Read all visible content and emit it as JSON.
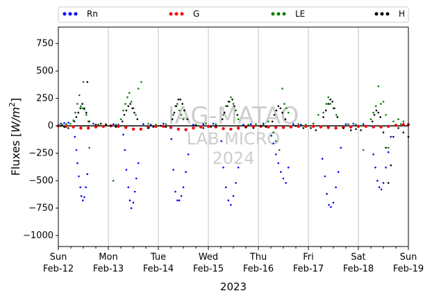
{
  "chart_data": {
    "type": "scatter",
    "ylabel": "Fluxes [W/m²]",
    "ylabel_parts": {
      "base": "Fluxes [",
      "unit": "W/m",
      "exp": "2",
      "end": "]"
    },
    "xlabel": "2023",
    "ylim": [
      -1100,
      900
    ],
    "yticks": [
      750,
      500,
      250,
      0,
      -250,
      -500,
      -750,
      -1000
    ],
    "xlim_days": [
      0,
      7
    ],
    "xticks": [
      {
        "day": 0,
        "label1": "Sun",
        "label2": "Feb-12"
      },
      {
        "day": 1,
        "label1": "Mon",
        "label2": "Feb-13"
      },
      {
        "day": 2,
        "label1": "Tue",
        "label2": "Feb-14"
      },
      {
        "day": 3,
        "label1": "Wed",
        "label2": "Feb-15"
      },
      {
        "day": 4,
        "label1": "Thu",
        "label2": "Feb-16"
      },
      {
        "day": 5,
        "label1": "Fri",
        "label2": "Feb-17"
      },
      {
        "day": 6,
        "label1": "Sat",
        "label2": "Feb-18"
      },
      {
        "day": 7,
        "label1": "Sun",
        "label2": "Feb-19"
      }
    ],
    "legend_placement": "top",
    "grid": "vertical",
    "watermark": {
      "line1": "IAG-MATAO",
      "line2": "LAB MICRO",
      "line3": "2024"
    },
    "series": [
      {
        "name": "Rn",
        "color": "#0000ff",
        "points": [
          [
            0.33,
            -100
          ],
          [
            0.36,
            -220
          ],
          [
            0.38,
            -340
          ],
          [
            0.41,
            -460
          ],
          [
            0.44,
            -560
          ],
          [
            0.46,
            -640
          ],
          [
            0.49,
            -680
          ],
          [
            0.52,
            -650
          ],
          [
            0.55,
            -560
          ],
          [
            0.58,
            -440
          ],
          [
            1.3,
            -80
          ],
          [
            1.33,
            -220
          ],
          [
            1.36,
            -400
          ],
          [
            1.4,
            -560
          ],
          [
            1.43,
            -680
          ],
          [
            1.46,
            -750
          ],
          [
            1.5,
            -700
          ],
          [
            1.53,
            -600
          ],
          [
            1.56,
            -480
          ],
          [
            1.6,
            -340
          ],
          [
            2.26,
            -120
          ],
          [
            2.3,
            -400
          ],
          [
            2.34,
            -600
          ],
          [
            2.38,
            -680
          ],
          [
            2.42,
            -680
          ],
          [
            2.46,
            -640
          ],
          [
            2.5,
            -560
          ],
          [
            2.55,
            -420
          ],
          [
            2.6,
            -260
          ],
          [
            3.26,
            -140
          ],
          [
            3.3,
            -380
          ],
          [
            3.35,
            -560
          ],
          [
            3.4,
            -680
          ],
          [
            3.45,
            -720
          ],
          [
            3.5,
            -640
          ],
          [
            3.55,
            -520
          ],
          [
            3.6,
            -380
          ],
          [
            4.26,
            -90
          ],
          [
            4.3,
            -160
          ],
          [
            4.35,
            -260
          ],
          [
            4.4,
            -340
          ],
          [
            4.45,
            -420
          ],
          [
            4.5,
            -480
          ],
          [
            4.55,
            -520
          ],
          [
            4.6,
            -380
          ],
          [
            5.28,
            -300
          ],
          [
            5.33,
            -460
          ],
          [
            5.37,
            -620
          ],
          [
            5.41,
            -720
          ],
          [
            5.45,
            -740
          ],
          [
            5.5,
            -700
          ],
          [
            5.55,
            -560
          ],
          [
            5.6,
            -420
          ],
          [
            5.65,
            -200
          ],
          [
            6.3,
            -260
          ],
          [
            6.34,
            -380
          ],
          [
            6.38,
            -500
          ],
          [
            6.42,
            -560
          ],
          [
            6.46,
            -580
          ],
          [
            6.5,
            -520
          ],
          [
            6.55,
            -380
          ],
          [
            6.6,
            -240
          ],
          [
            6.65,
            -100
          ],
          [
            0.05,
            20
          ],
          [
            0.12,
            25
          ],
          [
            0.2,
            30
          ],
          [
            0.7,
            20
          ],
          [
            0.8,
            10
          ],
          [
            1.1,
            15
          ],
          [
            1.2,
            10
          ],
          [
            1.7,
            15
          ],
          [
            1.85,
            10
          ],
          [
            2.1,
            20
          ],
          [
            2.7,
            10
          ],
          [
            2.9,
            15
          ],
          [
            3.1,
            20
          ],
          [
            3.7,
            10
          ],
          [
            3.85,
            15
          ],
          [
            4.1,
            20
          ],
          [
            4.7,
            15
          ],
          [
            4.85,
            10
          ],
          [
            5.1,
            20
          ],
          [
            5.75,
            15
          ],
          [
            5.9,
            20
          ],
          [
            6.1,
            15
          ],
          [
            6.75,
            10
          ],
          [
            6.9,
            20
          ]
        ]
      },
      {
        "name": "G",
        "color": "#ff0000",
        "points": [
          [
            0.0,
            0
          ],
          [
            0.15,
            -5
          ],
          [
            0.3,
            -10
          ],
          [
            0.45,
            -20
          ],
          [
            0.6,
            -20
          ],
          [
            0.75,
            -10
          ],
          [
            0.9,
            -5
          ],
          [
            1.05,
            0
          ],
          [
            1.2,
            -5
          ],
          [
            1.35,
            -15
          ],
          [
            1.5,
            -30
          ],
          [
            1.65,
            -30
          ],
          [
            1.8,
            -15
          ],
          [
            1.95,
            -5
          ],
          [
            2.1,
            -5
          ],
          [
            2.25,
            -15
          ],
          [
            2.4,
            -30
          ],
          [
            2.55,
            -35
          ],
          [
            2.7,
            -20
          ],
          [
            2.85,
            -10
          ],
          [
            3.0,
            -5
          ],
          [
            3.15,
            -10
          ],
          [
            3.3,
            -25
          ],
          [
            3.45,
            -30
          ],
          [
            3.6,
            -20
          ],
          [
            3.75,
            -10
          ],
          [
            3.9,
            -5
          ],
          [
            4.05,
            -5
          ],
          [
            4.2,
            -10
          ],
          [
            4.35,
            -15
          ],
          [
            4.5,
            -15
          ],
          [
            4.65,
            -10
          ],
          [
            4.8,
            -5
          ],
          [
            4.95,
            -5
          ],
          [
            5.1,
            -5
          ],
          [
            5.25,
            -10
          ],
          [
            5.4,
            -15
          ],
          [
            5.55,
            -20
          ],
          [
            5.7,
            -15
          ],
          [
            5.85,
            -10
          ],
          [
            6.0,
            -5
          ],
          [
            6.15,
            -5
          ],
          [
            6.3,
            -10
          ],
          [
            6.45,
            -10
          ],
          [
            6.6,
            -5
          ],
          [
            6.75,
            5
          ],
          [
            6.9,
            10
          ],
          [
            7.0,
            10
          ]
        ]
      },
      {
        "name": "LE",
        "color": "#008000",
        "points": [
          [
            0.3,
            50
          ],
          [
            0.34,
            120
          ],
          [
            0.38,
            200
          ],
          [
            0.42,
            280
          ],
          [
            0.45,
            180
          ],
          [
            0.48,
            160
          ],
          [
            0.52,
            150
          ],
          [
            0.56,
            100
          ],
          [
            0.6,
            40
          ],
          [
            0.62,
            -200
          ],
          [
            0.5,
            400
          ],
          [
            1.25,
            60
          ],
          [
            1.3,
            140
          ],
          [
            1.34,
            200
          ],
          [
            1.38,
            260
          ],
          [
            1.42,
            300
          ],
          [
            1.46,
            220
          ],
          [
            1.5,
            160
          ],
          [
            1.55,
            100
          ],
          [
            1.6,
            340
          ],
          [
            1.66,
            400
          ],
          [
            1.1,
            -500
          ],
          [
            2.3,
            100
          ],
          [
            2.34,
            180
          ],
          [
            2.38,
            200
          ],
          [
            2.42,
            140
          ],
          [
            2.46,
            100
          ],
          [
            2.5,
            60
          ],
          [
            3.3,
            100
          ],
          [
            3.35,
            180
          ],
          [
            3.4,
            220
          ],
          [
            3.45,
            260
          ],
          [
            3.5,
            200
          ],
          [
            3.55,
            140
          ],
          [
            3.6,
            60
          ],
          [
            4.2,
            40
          ],
          [
            4.3,
            -60
          ],
          [
            4.35,
            -140
          ],
          [
            4.42,
            -220
          ],
          [
            4.48,
            340
          ],
          [
            4.52,
            200
          ],
          [
            4.56,
            160
          ],
          [
            4.6,
            120
          ],
          [
            5.2,
            100
          ],
          [
            5.3,
            120
          ],
          [
            5.36,
            200
          ],
          [
            5.4,
            260
          ],
          [
            5.44,
            200
          ],
          [
            5.5,
            160
          ],
          [
            5.56,
            100
          ],
          [
            6.1,
            -220
          ],
          [
            6.25,
            60
          ],
          [
            6.3,
            120
          ],
          [
            6.35,
            180
          ],
          [
            6.4,
            360
          ],
          [
            6.45,
            200
          ],
          [
            6.5,
            220
          ],
          [
            6.55,
            100
          ],
          [
            6.6,
            -200
          ],
          [
            6.7,
            40
          ],
          [
            6.8,
            60
          ],
          [
            6.9,
            40
          ],
          [
            0.08,
            10
          ],
          [
            0.16,
            15
          ],
          [
            0.24,
            20
          ],
          [
            0.8,
            10
          ],
          [
            0.95,
            15
          ],
          [
            1.15,
            10
          ],
          [
            1.8,
            20
          ],
          [
            1.95,
            10
          ],
          [
            2.15,
            15
          ],
          [
            2.75,
            10
          ],
          [
            2.95,
            20
          ],
          [
            3.15,
            15
          ],
          [
            3.8,
            10
          ],
          [
            3.95,
            15
          ],
          [
            4.1,
            10
          ],
          [
            4.8,
            15
          ],
          [
            4.95,
            10
          ],
          [
            5.1,
            20
          ],
          [
            5.8,
            15
          ],
          [
            5.95,
            10
          ],
          [
            6.85,
            15
          ]
        ]
      },
      {
        "name": "H",
        "color": "#000000",
        "points": [
          [
            0.32,
            40
          ],
          [
            0.36,
            80
          ],
          [
            0.4,
            120
          ],
          [
            0.44,
            160
          ],
          [
            0.48,
            200
          ],
          [
            0.52,
            160
          ],
          [
            0.56,
            120
          ],
          [
            0.58,
            400
          ],
          [
            0.62,
            40
          ],
          [
            1.28,
            40
          ],
          [
            1.32,
            100
          ],
          [
            1.36,
            140
          ],
          [
            1.4,
            180
          ],
          [
            1.44,
            200
          ],
          [
            1.48,
            160
          ],
          [
            1.52,
            120
          ],
          [
            1.58,
            60
          ],
          [
            2.28,
            60
          ],
          [
            2.32,
            120
          ],
          [
            2.36,
            180
          ],
          [
            2.4,
            240
          ],
          [
            2.44,
            240
          ],
          [
            2.48,
            200
          ],
          [
            2.52,
            140
          ],
          [
            2.58,
            60
          ],
          [
            3.28,
            60
          ],
          [
            3.32,
            120
          ],
          [
            3.38,
            180
          ],
          [
            3.42,
            220
          ],
          [
            3.48,
            240
          ],
          [
            3.52,
            180
          ],
          [
            3.58,
            100
          ],
          [
            4.28,
            40
          ],
          [
            4.32,
            100
          ],
          [
            4.36,
            140
          ],
          [
            4.4,
            180
          ],
          [
            4.44,
            160
          ],
          [
            4.48,
            120
          ],
          [
            4.54,
            60
          ],
          [
            5.3,
            80
          ],
          [
            5.35,
            140
          ],
          [
            5.4,
            200
          ],
          [
            5.44,
            240
          ],
          [
            5.48,
            220
          ],
          [
            5.52,
            160
          ],
          [
            5.58,
            80
          ],
          [
            6.28,
            40
          ],
          [
            6.32,
            100
          ],
          [
            6.36,
            140
          ],
          [
            6.4,
            120
          ],
          [
            6.44,
            80
          ],
          [
            6.5,
            -60
          ],
          [
            6.55,
            -200
          ],
          [
            6.6,
            -520
          ],
          [
            6.65,
            -360
          ],
          [
            6.7,
            -100
          ],
          [
            0.05,
            0
          ],
          [
            0.12,
            -10
          ],
          [
            0.2,
            -20
          ],
          [
            0.75,
            10
          ],
          [
            0.85,
            20
          ],
          [
            0.95,
            10
          ],
          [
            1.05,
            0
          ],
          [
            1.15,
            -10
          ],
          [
            1.8,
            -20
          ],
          [
            1.9,
            -10
          ],
          [
            2.05,
            0
          ],
          [
            2.15,
            -10
          ],
          [
            2.75,
            0
          ],
          [
            2.9,
            -20
          ],
          [
            3.05,
            -10
          ],
          [
            3.15,
            0
          ],
          [
            3.75,
            -10
          ],
          [
            3.9,
            -20
          ],
          [
            4.05,
            0
          ],
          [
            4.15,
            -10
          ],
          [
            4.75,
            0
          ],
          [
            4.9,
            -20
          ],
          [
            5.05,
            -20
          ],
          [
            5.15,
            -40
          ],
          [
            5.7,
            -20
          ],
          [
            5.85,
            -40
          ],
          [
            5.95,
            -30
          ],
          [
            6.05,
            -40
          ],
          [
            6.8,
            -20
          ],
          [
            6.9,
            -60
          ],
          [
            7.0,
            -100
          ]
        ]
      }
    ]
  }
}
